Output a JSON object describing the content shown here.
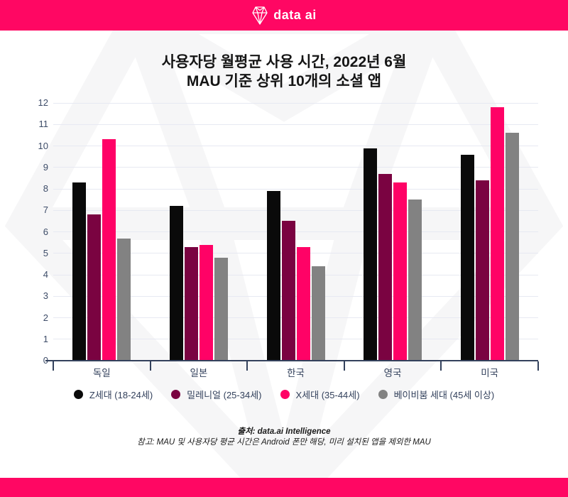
{
  "brand": {
    "logo_text": "data ai",
    "pink": "#FF0763",
    "gem_icon": "gem-icon"
  },
  "title": {
    "line1": "사용자당 월평균 사용 시간, 2022년 6월",
    "line2": "MAU 기준 상위 10개의 소셜 앱"
  },
  "chart_data": {
    "type": "bar",
    "categories": [
      "독일",
      "일본",
      "한국",
      "영국",
      "미국"
    ],
    "series": [
      {
        "name": "Z세대 (18-24세)",
        "color": "#0A0A0A",
        "values": [
          8.3,
          7.2,
          7.9,
          9.9,
          9.6
        ]
      },
      {
        "name": "밀레니얼 (25-34세)",
        "color": "#7A0341",
        "values": [
          6.8,
          5.3,
          6.5,
          8.7,
          8.4
        ]
      },
      {
        "name": "X세대 (35-44세)",
        "color": "#FF0266",
        "values": [
          10.3,
          5.4,
          5.3,
          8.3,
          11.8
        ]
      },
      {
        "name": "베이비붐 세대 (45세 이상)",
        "color": "#828282",
        "values": [
          5.7,
          4.8,
          4.4,
          7.5,
          10.6
        ]
      }
    ],
    "ylim": [
      0,
      12
    ],
    "ytick_step": 1,
    "grid": true,
    "legend_position": "bottom",
    "axis_color": "#33415C",
    "gridline_color": "#E7E9F2"
  },
  "footer": {
    "source": "출처: data.ai Intelligence",
    "note": "참고: MAU 및 사용자당 평균 시간은 Android 폰만 해당, 미리 설치된 앱을 제외한 MAU"
  }
}
